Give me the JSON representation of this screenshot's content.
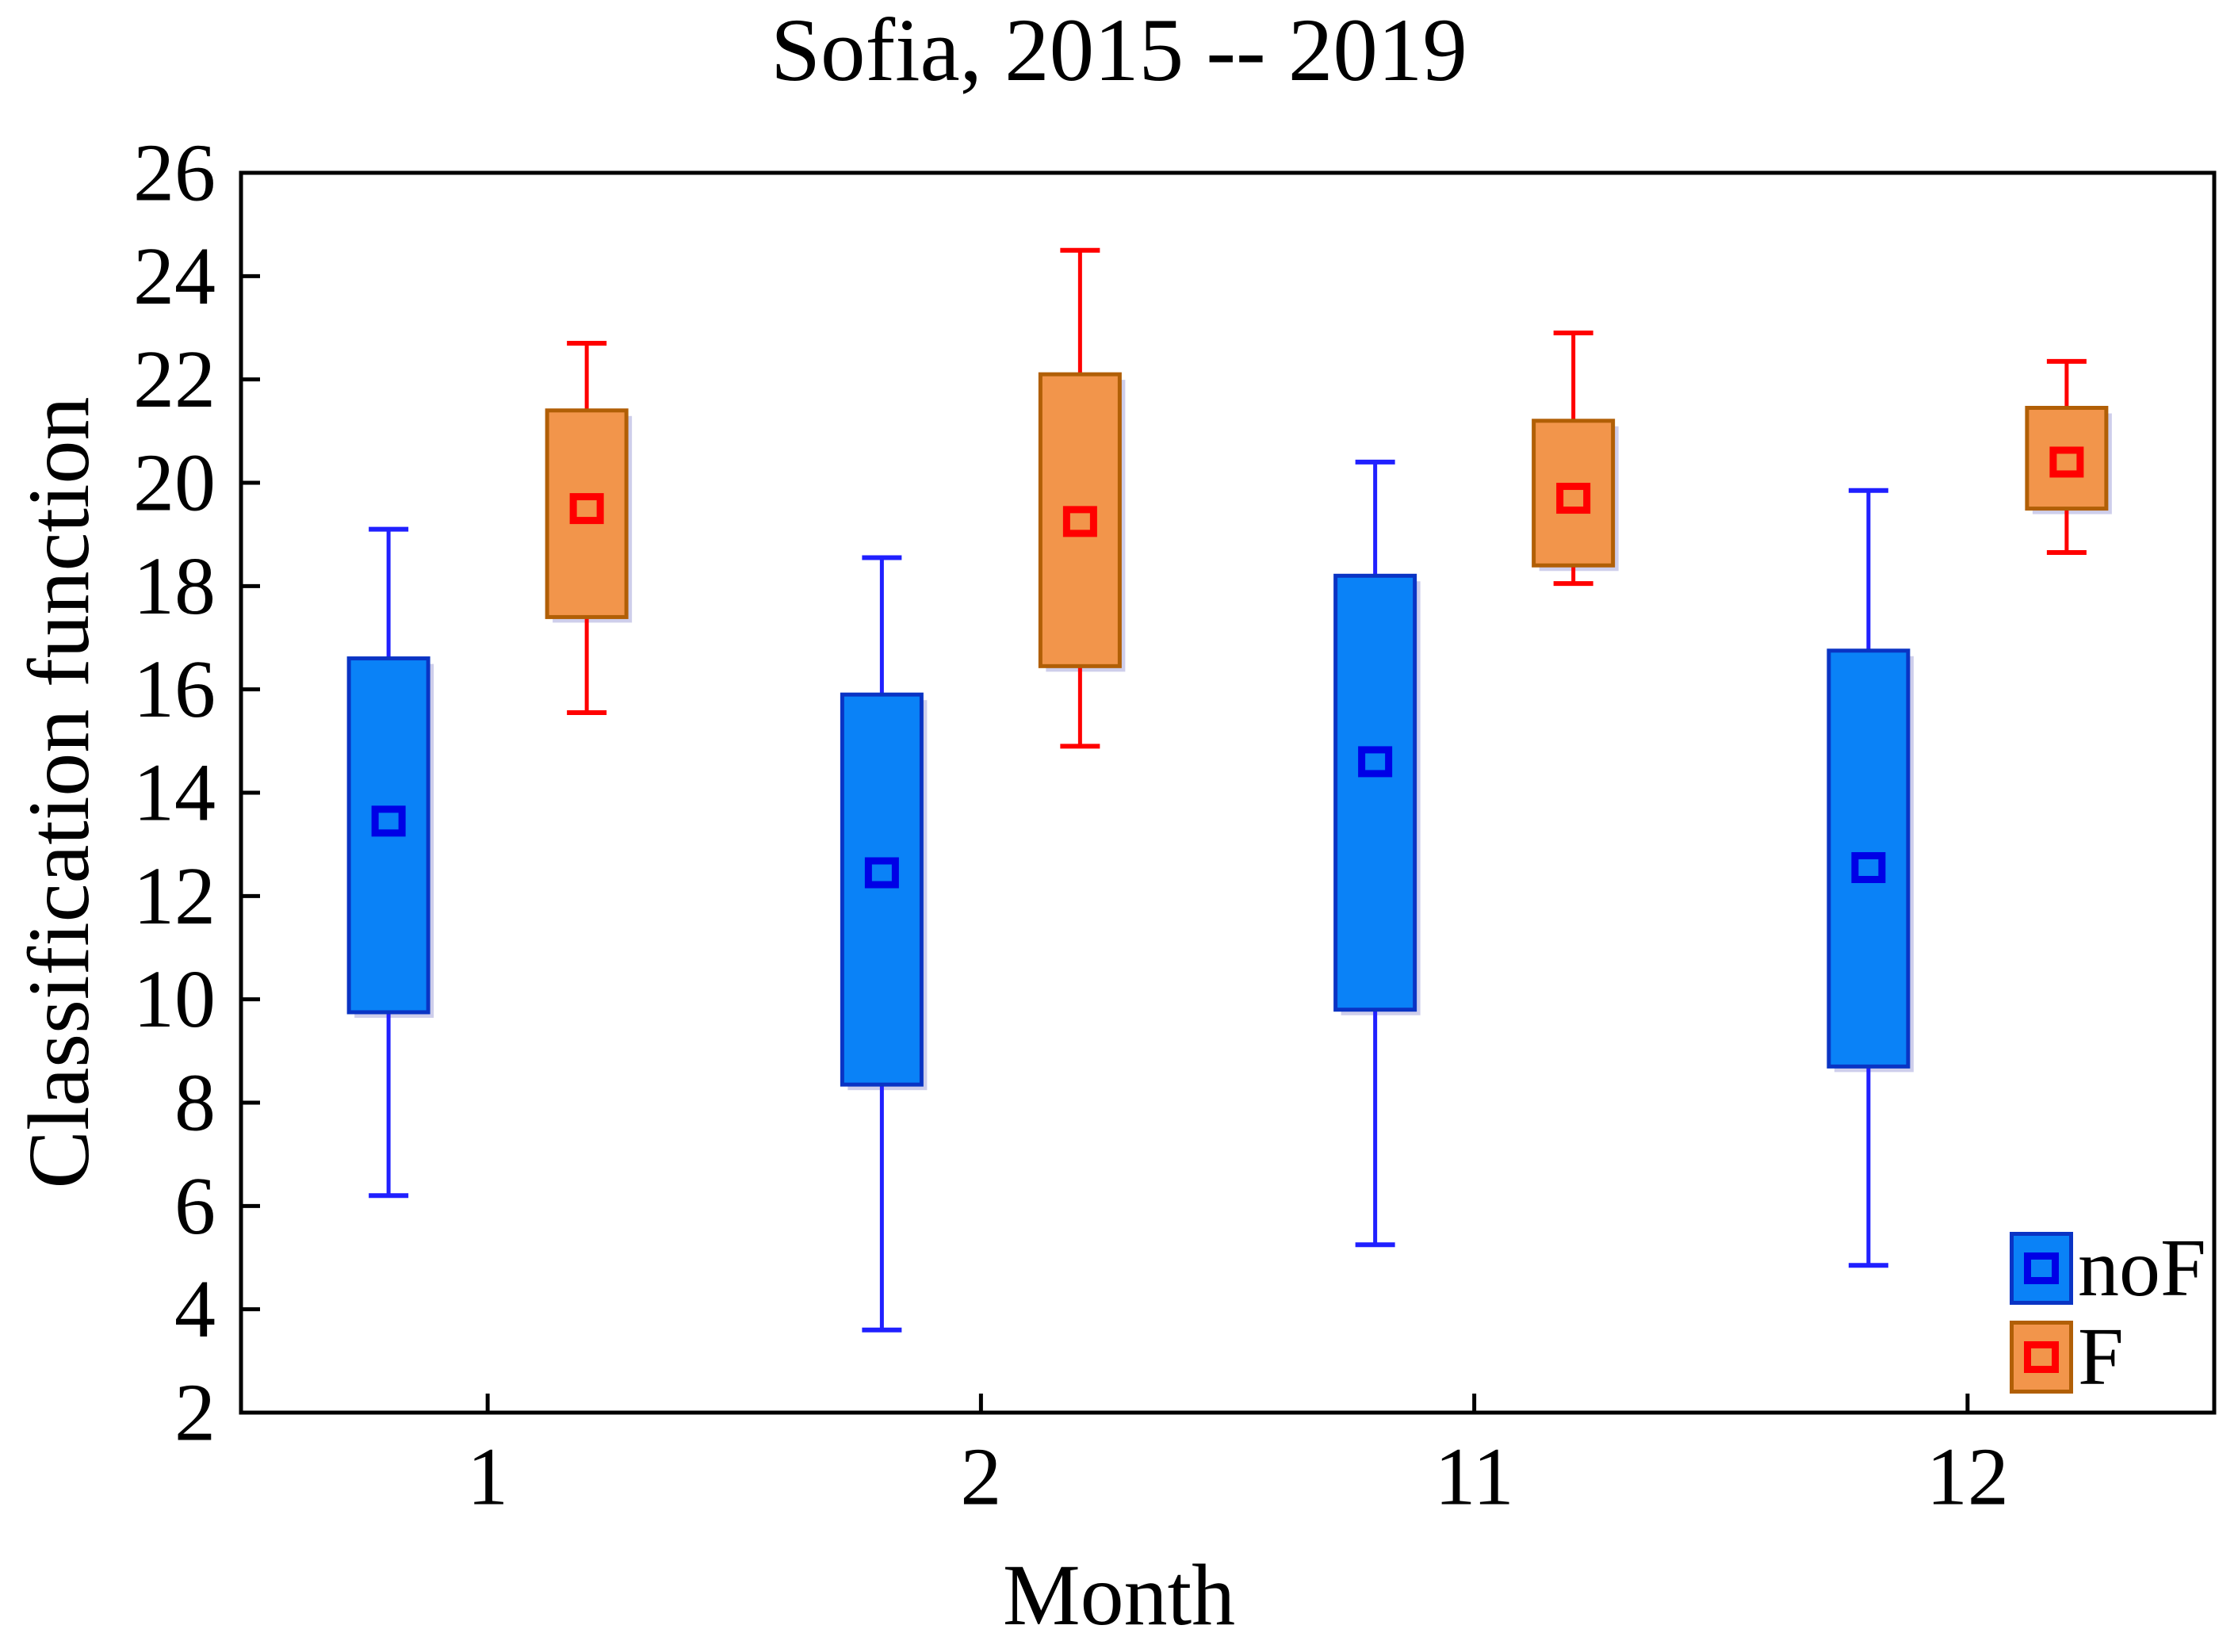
{
  "chart_data": {
    "type": "boxplot",
    "title": "Sofia, 2015 -- 2019",
    "xlabel": "Month",
    "ylabel": "Classification function",
    "categories": [
      "1",
      "2",
      "11",
      "12"
    ],
    "ylim": [
      2,
      26
    ],
    "ytick_step": 2,
    "ytick_labels": [
      "2",
      "4",
      "6",
      "8",
      "10",
      "12",
      "14",
      "16",
      "18",
      "20",
      "22",
      "24",
      "26"
    ],
    "grid": false,
    "legend_position": "lower-right",
    "series": [
      {
        "name": "noF",
        "fill": "#0A82F7",
        "border": "#0A34C4",
        "whisker": "#2020FF",
        "marker": "#0000E6",
        "boxes": [
          {
            "whisker_low": 6.2,
            "q1": 9.75,
            "median": 13.45,
            "q3": 16.6,
            "whisker_high": 19.1
          },
          {
            "whisker_low": 3.6,
            "q1": 8.35,
            "median": 12.45,
            "q3": 15.9,
            "whisker_high": 18.55
          },
          {
            "whisker_low": 5.25,
            "q1": 9.8,
            "median": 14.6,
            "q3": 18.2,
            "whisker_high": 20.4
          },
          {
            "whisker_low": 4.85,
            "q1": 8.7,
            "median": 12.55,
            "q3": 16.75,
            "whisker_high": 19.85
          }
        ]
      },
      {
        "name": "F",
        "fill": "#F2954B",
        "border": "#B15F06",
        "whisker": "#FF0000",
        "marker": "#FF0000",
        "boxes": [
          {
            "whisker_low": 15.55,
            "q1": 17.4,
            "median": 19.5,
            "q3": 21.4,
            "whisker_high": 22.7
          },
          {
            "whisker_low": 14.9,
            "q1": 16.45,
            "median": 19.25,
            "q3": 22.1,
            "whisker_high": 24.5
          },
          {
            "whisker_low": 18.05,
            "q1": 18.4,
            "median": 19.7,
            "q3": 21.2,
            "whisker_high": 22.9
          },
          {
            "whisker_low": 18.65,
            "q1": 19.5,
            "median": 20.4,
            "q3": 21.45,
            "whisker_high": 22.35
          }
        ]
      }
    ]
  },
  "legend": {
    "position": "lower-right"
  },
  "style": {
    "axis_color": "#000000",
    "background": "#ffffff",
    "shadow": "rgba(158,158,216,0.5)"
  }
}
